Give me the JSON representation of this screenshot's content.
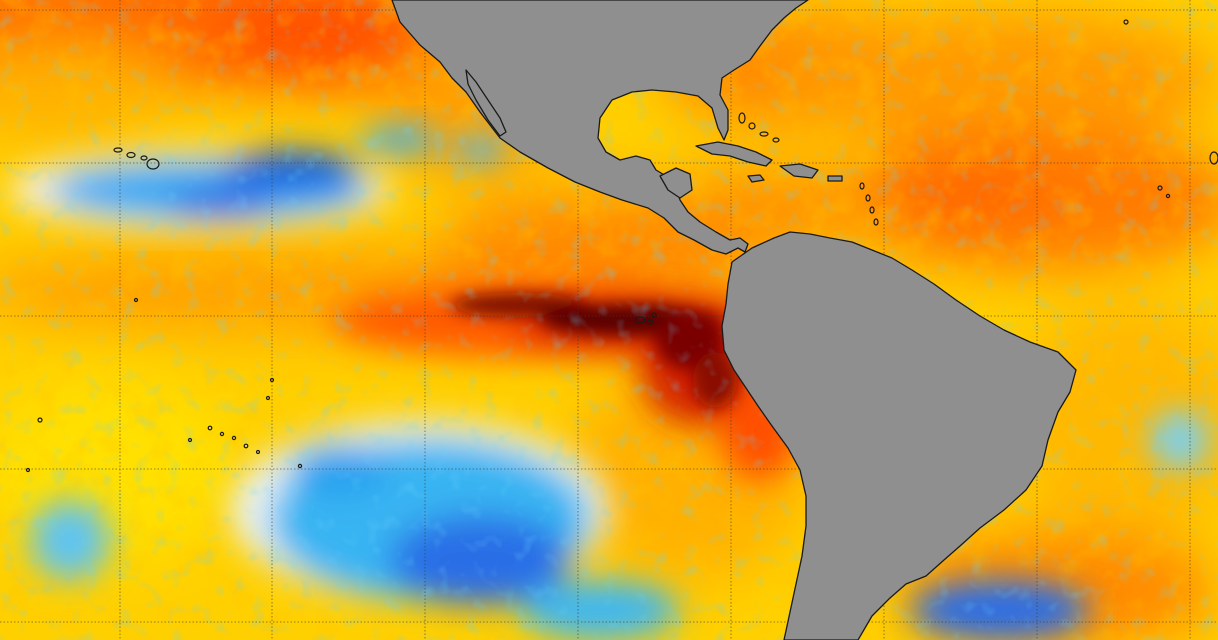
{
  "map": {
    "kind": "sea-surface-temperature-anomaly",
    "projection": "equirectangular",
    "graticule_spacing_deg": 10,
    "land_color": "#8f8f8f",
    "coast_color": "#1a1a1a",
    "grid_color": "#3a3a3a",
    "palette": {
      "strong_cool": "#1f4fe0",
      "cool": "#2aa0f0",
      "neutral": "#f2f2e8",
      "slight_warm": "#ffe600",
      "warm": "#ffb000",
      "hot": "#ff6a00",
      "very_hot": "#e02000",
      "extreme": "#5a0000"
    },
    "features": [
      "north-america",
      "south-america",
      "gulf-of-mexico",
      "caribbean-islands",
      "hawaiian-islands",
      "galapagos-islands",
      "equatorial-warm-tongue"
    ]
  }
}
